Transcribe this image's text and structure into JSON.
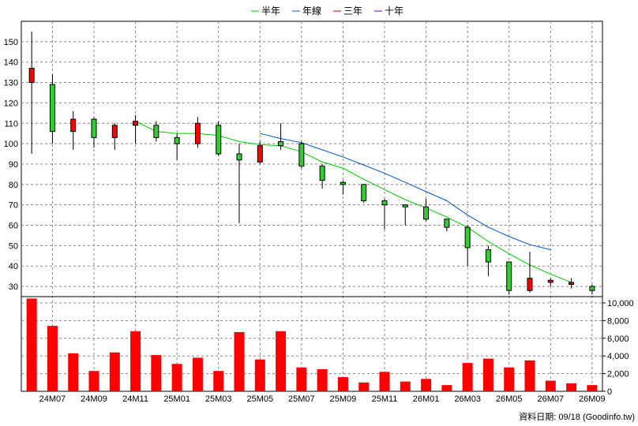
{
  "chart_data": {
    "type": "candlestick",
    "legend": [
      {
        "name": "半年",
        "color": "#00cc00"
      },
      {
        "name": "年線",
        "color": "#0055cc"
      },
      {
        "name": "三年",
        "color": "#cc0000"
      },
      {
        "name": "十年",
        "color": "#6600cc"
      }
    ],
    "price_axis": {
      "ticks": [
        30,
        40,
        50,
        60,
        70,
        80,
        90,
        100,
        110,
        120,
        130,
        140,
        150
      ]
    },
    "volume_axis": {
      "tick_labels": [
        "0",
        "2,000",
        "4,000",
        "6,000",
        "8,000",
        "10,000"
      ],
      "tick_values": [
        0,
        2000,
        4000,
        6000,
        8000,
        10000
      ],
      "max": 10000
    },
    "x_labels": [
      "24M07",
      "24M09",
      "24M11",
      "25M01",
      "25M03",
      "25M05",
      "25M07",
      "25M09",
      "25M11",
      "26M01",
      "26M03",
      "26M05",
      "26M07",
      "26M09"
    ],
    "candles": [
      {
        "open": 130,
        "close": 137,
        "high": 155,
        "low": 95
      },
      {
        "open": 129,
        "close": 106,
        "high": 134,
        "low": 100
      },
      {
        "open": 106,
        "close": 112,
        "high": 116,
        "low": 97
      },
      {
        "open": 112,
        "close": 103,
        "high": 113,
        "low": 98
      },
      {
        "open": 103,
        "close": 109,
        "high": 110,
        "low": 97
      },
      {
        "open": 109,
        "close": 111,
        "high": 114,
        "low": 100
      },
      {
        "open": 109,
        "close": 103,
        "high": 111,
        "low": 101
      },
      {
        "open": 103,
        "close": 100,
        "high": 105,
        "low": 92
      },
      {
        "open": 100,
        "close": 110,
        "high": 113,
        "low": 98
      },
      {
        "open": 109,
        "close": 95,
        "high": 111,
        "low": 94
      },
      {
        "open": 95,
        "close": 92,
        "high": 100,
        "low": 61
      },
      {
        "open": 91,
        "close": 99,
        "high": 101,
        "low": 90
      },
      {
        "open": 101,
        "close": 99,
        "high": 110,
        "low": 97
      },
      {
        "open": 100,
        "close": 89,
        "high": 101,
        "low": 88
      },
      {
        "open": 89,
        "close": 82,
        "high": 90,
        "low": 78
      },
      {
        "open": 81,
        "close": 80,
        "high": 82,
        "low": 75
      },
      {
        "open": 80,
        "close": 72,
        "high": 80,
        "low": 71
      },
      {
        "open": 72,
        "close": 70,
        "high": 73,
        "low": 58
      },
      {
        "open": 70,
        "close": 69,
        "high": 70,
        "low": 60
      },
      {
        "open": 69,
        "close": 63,
        "high": 73,
        "low": 62
      },
      {
        "open": 63,
        "close": 59,
        "high": 63,
        "low": 57
      },
      {
        "open": 59,
        "close": 49,
        "high": 60,
        "low": 40
      },
      {
        "open": 48,
        "close": 42,
        "high": 50,
        "low": 35
      },
      {
        "open": 42,
        "close": 28,
        "high": 42,
        "low": 26
      },
      {
        "open": 28,
        "close": 34,
        "high": 47,
        "low": 27
      },
      {
        "open": 32,
        "close": 33,
        "high": 34,
        "low": 30
      },
      {
        "open": 31,
        "close": 32,
        "high": 34,
        "low": 29
      },
      {
        "open": 30,
        "close": 28,
        "high": 31,
        "low": 26
      }
    ],
    "volumes": [
      10500,
      7400,
      4300,
      2300,
      4400,
      6800,
      4100,
      3100,
      3800,
      2300,
      6700,
      3600,
      6800,
      2700,
      2500,
      1600,
      1000,
      2200,
      1100,
      1400,
      700,
      3200,
      3700,
      2700,
      3500,
      1200,
      900,
      700
    ],
    "ma_half_year": {
      "start_index": 5,
      "values": [
        111,
        106,
        105,
        105,
        104,
        101,
        99.5,
        99,
        96,
        91,
        88,
        82.5,
        77.5,
        72.5,
        68.5,
        64,
        59,
        52,
        46,
        40.5,
        36,
        32
      ]
    },
    "ma_year": {
      "start_index": 11,
      "values": [
        105,
        102.5,
        100.5,
        97,
        93.5,
        89.5,
        85.5,
        81,
        76.5,
        72,
        65,
        59,
        54.5,
        50.5,
        48
      ]
    }
  },
  "footer": {
    "label": "資料日期: 09/18 (Goodinfo.tw)"
  },
  "styles": {
    "up_color": "#ff0000",
    "down_color": "#33cc33",
    "volume_color": "#ff0000",
    "grid_color": "#888888"
  }
}
